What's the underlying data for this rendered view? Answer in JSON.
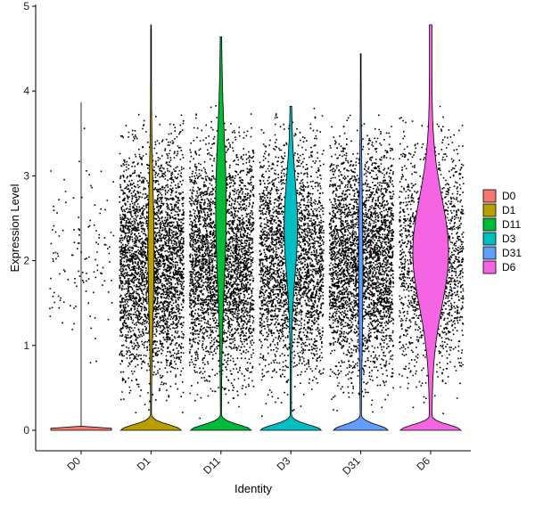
{
  "chart_data": {
    "type": "violin",
    "title": "",
    "xlabel": "Identity",
    "ylabel": "Expression Level",
    "ylim": [
      0,
      5
    ],
    "yticks": [
      "0",
      "1",
      "2",
      "3",
      "4",
      "5"
    ],
    "categories": [
      "D0",
      "D1",
      "D11",
      "D3",
      "D31",
      "D6"
    ],
    "colors": [
      "#F8766D",
      "#B79F00",
      "#00BA38",
      "#00BFC4",
      "#619CFF",
      "#F564E3"
    ],
    "max_values": [
      3.87,
      4.78,
      4.64,
      3.82,
      4.44,
      4.78
    ],
    "point_density": [
      0.04,
      1.0,
      1.0,
      0.85,
      1.0,
      0.55
    ],
    "grid": false,
    "legend_position": "right",
    "legend": [
      "D0",
      "D1",
      "D11",
      "D3",
      "D31",
      "D6"
    ]
  }
}
